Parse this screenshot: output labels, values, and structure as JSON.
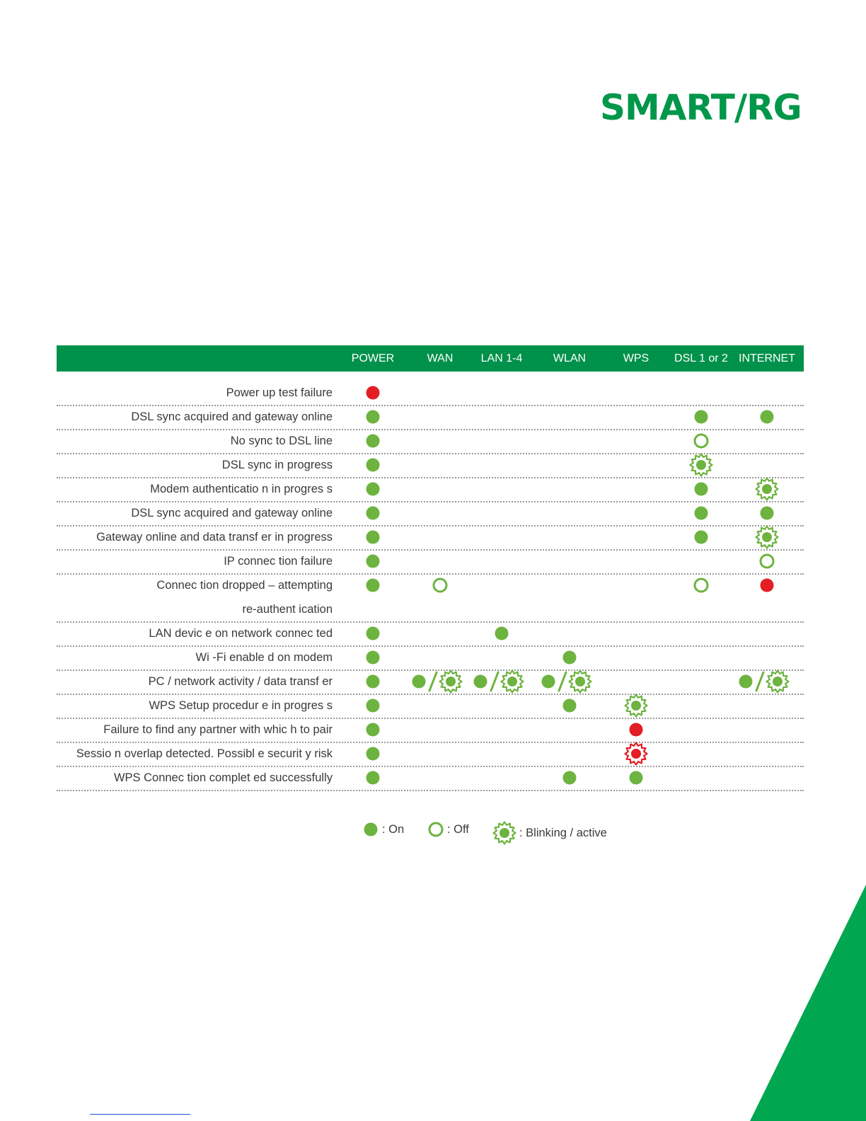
{
  "brand": {
    "logo_text": "SMART/RG",
    "color": "#00974a"
  },
  "table": {
    "header_bg": "#00914a",
    "columns": [
      {
        "key": "power",
        "label": "POWER"
      },
      {
        "key": "wan",
        "label": "WAN"
      },
      {
        "key": "lan",
        "label": "LAN 1-4"
      },
      {
        "key": "wlan",
        "label": "WLAN"
      },
      {
        "key": "wps",
        "label": "WPS"
      },
      {
        "key": "dsl",
        "label": "DSL 1 or 2"
      },
      {
        "key": "internet",
        "label": "INTERNET"
      }
    ],
    "rows": [
      {
        "label": "Power up test failure",
        "indicators": {
          "power": "on-red"
        }
      },
      {
        "label": "DSL sync acquired and gateway online",
        "indicators": {
          "power": "on",
          "dsl": "on",
          "internet": "on"
        }
      },
      {
        "label": "No sync to DSL line",
        "indicators": {
          "power": "on",
          "dsl": "off"
        }
      },
      {
        "label": "DSL sync in progress",
        "indicators": {
          "power": "on",
          "dsl": "blinking"
        }
      },
      {
        "label": "Modem authenticatio n in progres s",
        "indicators": {
          "power": "on",
          "dsl": "on",
          "internet": "blinking"
        }
      },
      {
        "label": "DSL sync acquired and gateway online",
        "indicators": {
          "power": "on",
          "dsl": "on",
          "internet": "on"
        }
      },
      {
        "label": "Gateway online and data transf er in progress",
        "indicators": {
          "power": "on",
          "dsl": "on",
          "internet": "blinking"
        }
      },
      {
        "label": "IP connec tion failure",
        "indicators": {
          "power": "on",
          "internet": "off"
        }
      },
      {
        "label": "Connec tion dropped – attempting",
        "label_line2": "re-authent ication",
        "indicators": {
          "power": "on",
          "wan": "off",
          "dsl": "off",
          "internet": "on-red"
        }
      },
      {
        "label": "LAN devic e on network connec ted",
        "indicators": {
          "power": "on",
          "lan": "on"
        }
      },
      {
        "label": "Wi -Fi enable d on modem",
        "indicators": {
          "power": "on",
          "wlan": "on"
        }
      },
      {
        "label": "PC / network activity / data transf er",
        "indicators": {
          "power": "on",
          "wan": "on-or-blinking",
          "lan": "on-or-blinking",
          "wlan": "on-or-blinking",
          "internet": "on-or-blinking"
        }
      },
      {
        "label": "WPS Setup procedur e in progres s",
        "indicators": {
          "power": "on",
          "wlan": "on",
          "wps": "blinking"
        }
      },
      {
        "label": "Failure to find any partner with whic h to pair",
        "indicators": {
          "power": "on",
          "wps": "on-red"
        }
      },
      {
        "label": "Sessio n overlap detected. Possibl e securit y risk",
        "indicators": {
          "power": "on",
          "wps": "blinking-red"
        }
      },
      {
        "label": "WPS Connec tion complet ed successfully",
        "indicators": {
          "power": "on",
          "wlan": "on",
          "wps": "on"
        }
      }
    ]
  },
  "legend": {
    "on_label": ": On",
    "off_label": ": Off",
    "blinking_label": ": Blinking / active"
  },
  "colors": {
    "green": "#6db33f",
    "red": "#e31e24"
  }
}
